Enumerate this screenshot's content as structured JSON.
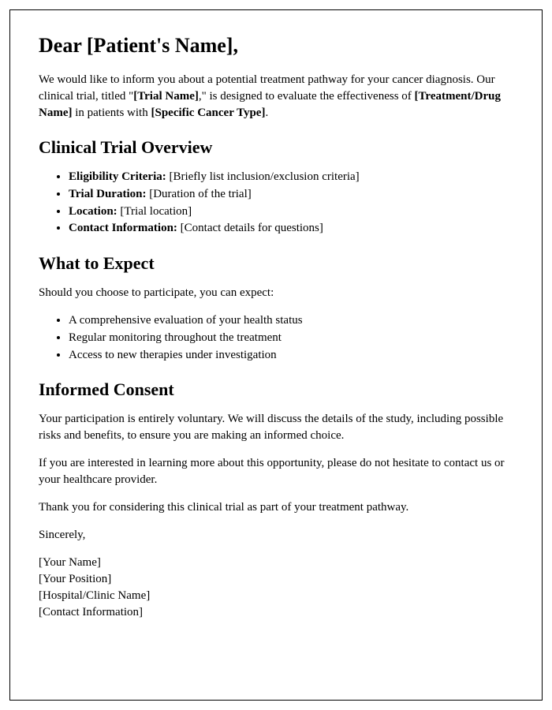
{
  "salutation": {
    "prefix": "Dear ",
    "name": "[Patient's Name]",
    "suffix": ","
  },
  "intro": {
    "part1": "We would like to inform you about a potential treatment pathway for your cancer diagnosis. Our clinical trial, titled \"",
    "trial_name": "[Trial Name]",
    "part2": ",\" is designed to evaluate the effectiveness of ",
    "treatment_name": "[Treatment/Drug Name]",
    "part3": " in patients with ",
    "cancer_type": "[Specific Cancer Type]",
    "part4": "."
  },
  "overview": {
    "heading": "Clinical Trial Overview",
    "items": [
      {
        "label": "Eligibility Criteria:",
        "value": " [Briefly list inclusion/exclusion criteria]"
      },
      {
        "label": "Trial Duration:",
        "value": " [Duration of the trial]"
      },
      {
        "label": "Location:",
        "value": " [Trial location]"
      },
      {
        "label": "Contact Information:",
        "value": " [Contact details for questions]"
      }
    ]
  },
  "expect": {
    "heading": "What to Expect",
    "lead": "Should you choose to participate, you can expect:",
    "items": [
      "A comprehensive evaluation of your health status",
      "Regular monitoring throughout the treatment",
      "Access to new therapies under investigation"
    ]
  },
  "consent": {
    "heading": "Informed Consent",
    "p1": "Your participation is entirely voluntary. We will discuss the details of the study, including possible risks and benefits, to ensure you are making an informed choice.",
    "p2": "If you are interested in learning more about this opportunity, please do not hesitate to contact us or your healthcare provider.",
    "p3": "Thank you for considering this clinical trial as part of your treatment pathway."
  },
  "closing": {
    "valediction": "Sincerely,",
    "lines": [
      "[Your Name]",
      "[Your Position]",
      "[Hospital/Clinic Name]",
      "[Contact Information]"
    ]
  }
}
